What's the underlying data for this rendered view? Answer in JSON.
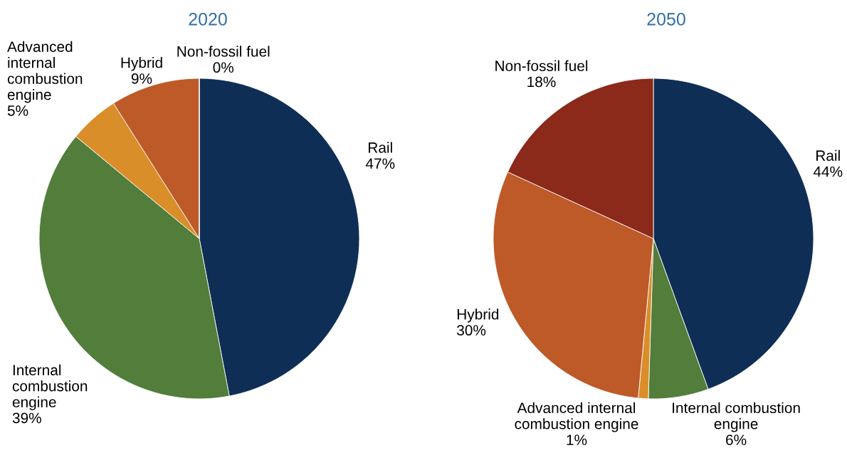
{
  "chart_data": [
    {
      "type": "pie",
      "title": "2020",
      "categories": [
        "Rail",
        "Internal combustion engine",
        "Advanced internal combustion engine",
        "Hybrid",
        "Non-fossil fuel"
      ],
      "values": [
        47,
        39,
        5,
        9,
        0
      ],
      "value_labels": [
        "47%",
        "39%",
        "5%",
        "9%",
        "0%"
      ],
      "colors": [
        "#0f2e55",
        "#527d3b",
        "#d98e2a",
        "#bd5a28",
        "#8b291a"
      ]
    },
    {
      "type": "pie",
      "title": "2050",
      "categories": [
        "Rail",
        "Internal combustion engine",
        "Advanced internal combustion engine",
        "Hybrid",
        "Non-fossil fuel"
      ],
      "values": [
        44,
        6,
        1,
        30,
        18
      ],
      "value_labels": [
        "44%",
        "6%",
        "1%",
        "30%",
        "18%"
      ],
      "colors": [
        "#0f2e55",
        "#527d3b",
        "#d98e2a",
        "#bd5a28",
        "#8b291a"
      ]
    }
  ]
}
